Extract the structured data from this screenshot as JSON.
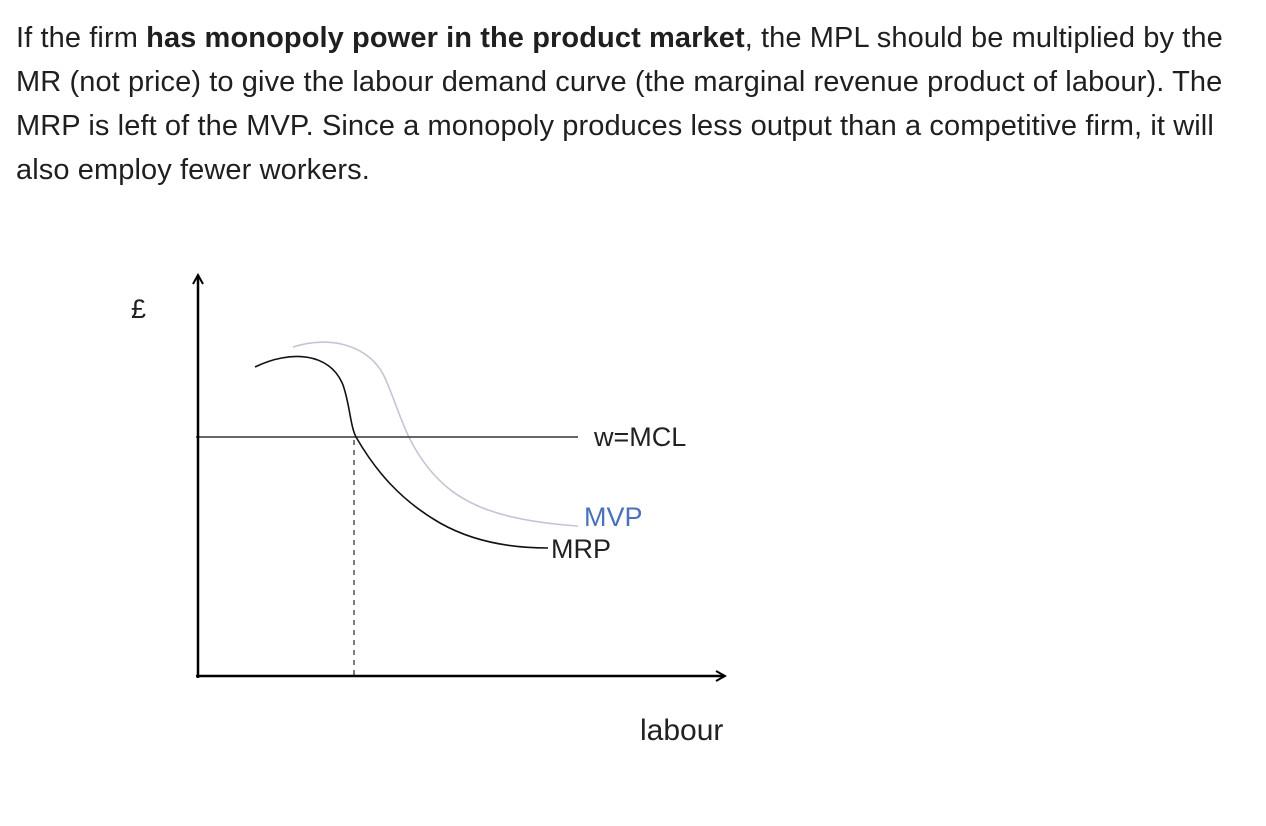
{
  "paragraph": {
    "before_bold": "If the firm ",
    "bold": "has monopoly power in the product market",
    "after_bold": ", the MPL should be multiplied by the MR (not price) to give the labour demand curve (the marginal revenue product of labour). The MRP is left of the MVP. Since a monopoly produces less output than a competitive firm, it will also employ fewer workers."
  },
  "diagram": {
    "y_axis_label": "£",
    "x_axis_label": "labour",
    "wage_line_label": "w=MCL",
    "mvp_label": "MVP",
    "mrp_label": "MRP",
    "colors": {
      "axis": "#000000",
      "wage_line": "#333333",
      "mrp_curve": "#111111",
      "mvp_curve": "#c4c4d6",
      "mvp_label": "#4a72b8",
      "dashed_line": "#444444"
    }
  }
}
